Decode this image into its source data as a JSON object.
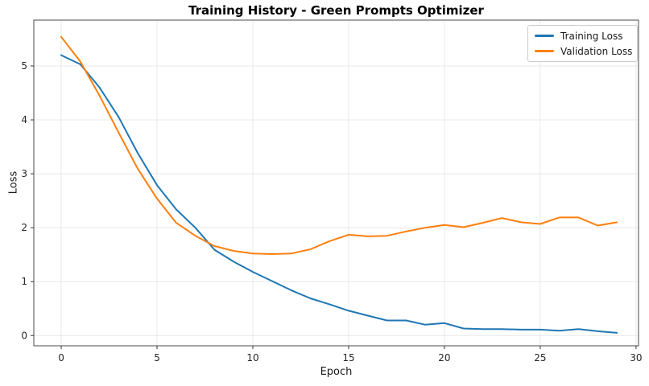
{
  "chart_data": {
    "type": "line",
    "title": "Training History - Green Prompts Optimizer",
    "xlabel": "Epoch",
    "ylabel": "Loss",
    "x": [
      0,
      1,
      2,
      3,
      4,
      5,
      6,
      7,
      8,
      9,
      10,
      11,
      12,
      13,
      14,
      15,
      16,
      17,
      18,
      19,
      20,
      21,
      22,
      23,
      24,
      25,
      26,
      27,
      28,
      29
    ],
    "series": [
      {
        "name": "Training Loss",
        "color": "#1f77b4",
        "values": [
          5.2,
          5.03,
          4.6,
          4.05,
          3.38,
          2.79,
          2.34,
          2.0,
          1.59,
          1.37,
          1.18,
          1.01,
          0.84,
          0.69,
          0.58,
          0.46,
          0.37,
          0.28,
          0.28,
          0.2,
          0.23,
          0.13,
          0.12,
          0.12,
          0.11,
          0.11,
          0.09,
          0.12,
          0.08,
          0.05
        ]
      },
      {
        "name": "Validation Loss",
        "color": "#ff7f0e",
        "values": [
          5.54,
          5.08,
          4.45,
          3.76,
          3.09,
          2.54,
          2.09,
          1.85,
          1.66,
          1.57,
          1.52,
          1.51,
          1.52,
          1.6,
          1.75,
          1.87,
          1.84,
          1.85,
          1.93,
          2.0,
          2.05,
          2.01,
          2.09,
          2.18,
          2.1,
          2.07,
          2.19,
          2.19,
          2.04,
          2.1
        ]
      }
    ],
    "xticks": [
      0,
      5,
      10,
      15,
      20,
      25,
      30
    ],
    "yticks": [
      0,
      1,
      2,
      3,
      4,
      5
    ],
    "xlim": [
      -1.43,
      30.13
    ],
    "ylim": [
      -0.19,
      5.85
    ],
    "grid": true,
    "legend_position": "upper right",
    "styles": {
      "grid_color": "#e8e8e8",
      "spine_color": "#4a4a4a",
      "tick_color": "#333333",
      "background": "#ffffff",
      "line_width": 2
    }
  }
}
